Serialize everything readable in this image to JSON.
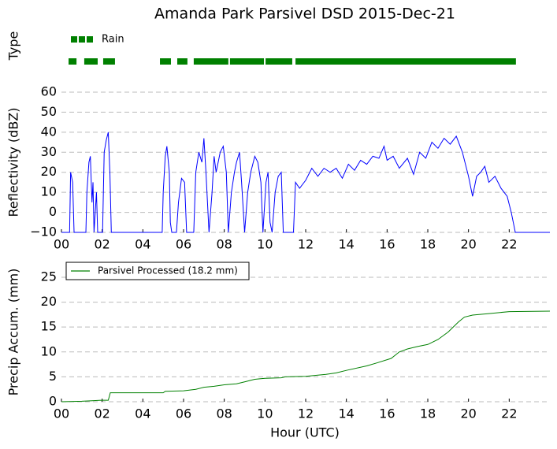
{
  "title": "Amanda Park Parsivel DSD 2015-Dec-21",
  "chart_data": [
    {
      "type": "timeline",
      "ylabel": "Type",
      "xlim": [
        0,
        24
      ],
      "series": [
        {
          "name": "Rain",
          "color": "#008000",
          "segments": [
            [
              0.35,
              0.74
            ],
            [
              1.12,
              1.78
            ],
            [
              2.05,
              2.63
            ],
            [
              4.84,
              5.38
            ],
            [
              5.69,
              6.19
            ],
            [
              6.5,
              8.2
            ],
            [
              8.28,
              9.95
            ],
            [
              10.03,
              11.34
            ],
            [
              11.5,
              22.33
            ]
          ]
        }
      ]
    },
    {
      "type": "line",
      "ylabel": "Reflectivity (dBZ)",
      "color": "#0000ff",
      "grid": true,
      "xlim": [
        0,
        24
      ],
      "ylim": [
        -10,
        60
      ],
      "xticks": [
        {
          "value": 0,
          "label": "00"
        },
        {
          "value": 2,
          "label": "02"
        },
        {
          "value": 4,
          "label": "04"
        },
        {
          "value": 6,
          "label": "06"
        },
        {
          "value": 8,
          "label": "08"
        },
        10,
        12,
        14,
        16,
        18,
        20,
        22
      ],
      "yticks": [
        {
          "value": -10,
          "label": "−10"
        },
        0,
        10,
        20,
        30,
        40,
        50,
        60
      ],
      "x": [
        0,
        0.4,
        0.45,
        0.55,
        0.62,
        1.2,
        1.25,
        1.35,
        1.42,
        1.5,
        1.55,
        1.6,
        1.72,
        1.78,
        2.02,
        2.1,
        2.2,
        2.3,
        2.38,
        2.45,
        4.95,
        5.0,
        5.1,
        5.18,
        5.3,
        5.35,
        5.42,
        5.65,
        5.75,
        5.9,
        6.05,
        6.15,
        6.5,
        6.6,
        6.75,
        6.9,
        7.0,
        7.1,
        7.25,
        7.4,
        7.5,
        7.6,
        7.7,
        7.8,
        7.95,
        8.1,
        8.2,
        8.35,
        8.5,
        8.6,
        8.75,
        8.85,
        9.0,
        9.15,
        9.3,
        9.5,
        9.65,
        9.8,
        9.9,
        10.05,
        10.15,
        10.25,
        10.35,
        10.5,
        10.65,
        10.8,
        10.9,
        11.4,
        11.5,
        11.7,
        12.0,
        12.3,
        12.6,
        12.9,
        13.2,
        13.5,
        13.8,
        14.1,
        14.4,
        14.7,
        15.0,
        15.3,
        15.6,
        15.85,
        16.0,
        16.3,
        16.6,
        17.0,
        17.3,
        17.6,
        17.9,
        18.2,
        18.5,
        18.8,
        19.1,
        19.4,
        19.7,
        20.0,
        20.2,
        20.4,
        20.6,
        20.8,
        21.0,
        21.3,
        21.6,
        21.9,
        22.1,
        22.3,
        24
      ],
      "values": [
        -10,
        -10,
        20,
        15,
        -10,
        -10,
        10,
        25,
        28,
        5,
        15,
        -10,
        10,
        -10,
        -10,
        30,
        36,
        40,
        20,
        -10,
        -10,
        10,
        28,
        33,
        20,
        -5,
        -10,
        -10,
        5,
        17,
        15,
        -10,
        -10,
        20,
        30,
        25,
        37,
        20,
        -10,
        10,
        28,
        20,
        25,
        30,
        33,
        20,
        -10,
        10,
        20,
        25,
        30,
        15,
        -10,
        10,
        20,
        28,
        25,
        15,
        -10,
        15,
        20,
        -5,
        -10,
        10,
        18,
        20,
        -10,
        -10,
        15,
        12,
        16,
        22,
        18,
        22,
        20,
        22,
        17,
        24,
        21,
        26,
        24,
        28,
        27,
        33,
        26,
        28,
        22,
        27,
        19,
        30,
        27,
        35,
        32,
        37,
        34,
        38,
        30,
        18,
        8,
        18,
        20,
        23,
        15,
        18,
        12,
        8,
        0,
        -10,
        -10
      ]
    },
    {
      "type": "line",
      "ylabel": "Precip Accum. (mm)",
      "xlabel": "Hour (UTC)",
      "grid": true,
      "legend": "upper left",
      "xlim": [
        0,
        24
      ],
      "ylim": [
        0,
        28
      ],
      "xticks": [
        {
          "value": 0,
          "label": "00"
        },
        {
          "value": 2,
          "label": "02"
        },
        {
          "value": 4,
          "label": "04"
        },
        {
          "value": 6,
          "label": "06"
        },
        {
          "value": 8,
          "label": "08"
        },
        10,
        12,
        14,
        16,
        18,
        20,
        22
      ],
      "yticks": [
        0,
        5,
        10,
        15,
        20,
        25
      ],
      "x": [
        0,
        1,
        1.5,
        2.0,
        2.3,
        2.4,
        5.0,
        5.1,
        6.0,
        6.6,
        7.0,
        7.5,
        8.0,
        8.6,
        9.0,
        9.5,
        10.0,
        10.8,
        11.0,
        12.0,
        13.0,
        13.5,
        14.0,
        15.0,
        15.5,
        16.2,
        16.6,
        17.0,
        17.5,
        18.0,
        18.5,
        19.0,
        19.5,
        19.8,
        20.2,
        21.0,
        22.0,
        24
      ],
      "series": [
        {
          "name": "Parsivel Processed (18.2 mm)",
          "color": "#008000",
          "values": [
            0,
            0.1,
            0.2,
            0.3,
            0.3,
            1.8,
            1.8,
            2.1,
            2.2,
            2.5,
            2.9,
            3.1,
            3.4,
            3.6,
            4.0,
            4.5,
            4.7,
            4.8,
            5.0,
            5.1,
            5.5,
            5.8,
            6.3,
            7.2,
            7.8,
            8.7,
            10.0,
            10.6,
            11.1,
            11.5,
            12.5,
            14.0,
            16.0,
            17.0,
            17.4,
            17.7,
            18.1,
            18.2
          ]
        }
      ]
    }
  ]
}
